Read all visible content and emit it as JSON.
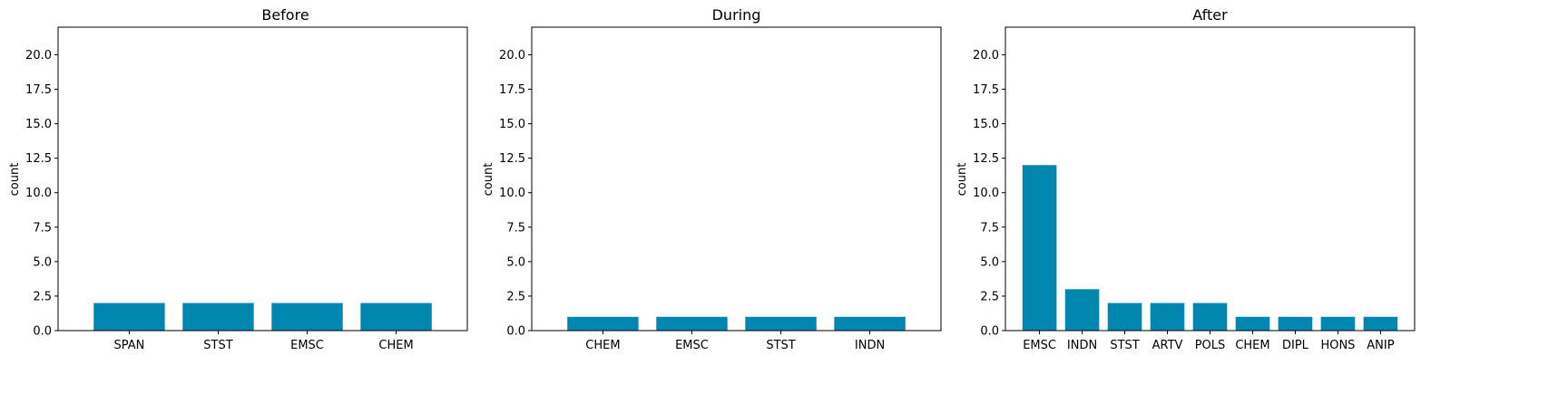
{
  "bar_color": "#0087b0",
  "chart_data": [
    {
      "type": "bar",
      "title": "Before",
      "xlabel": "",
      "ylabel": "count",
      "ylim": [
        0,
        22
      ],
      "yticks": [
        "0.0",
        "2.5",
        "5.0",
        "7.5",
        "10.0",
        "12.5",
        "15.0",
        "17.5",
        "20.0"
      ],
      "categories": [
        "SPAN",
        "STST",
        "EMSC",
        "CHEM"
      ],
      "values": [
        2,
        2,
        2,
        2
      ]
    },
    {
      "type": "bar",
      "title": "During",
      "xlabel": "",
      "ylabel": "count",
      "ylim": [
        0,
        22
      ],
      "yticks": [
        "0.0",
        "2.5",
        "5.0",
        "7.5",
        "10.0",
        "12.5",
        "15.0",
        "17.5",
        "20.0"
      ],
      "categories": [
        "CHEM",
        "EMSC",
        "STST",
        "INDN"
      ],
      "values": [
        1,
        1,
        1,
        1
      ]
    },
    {
      "type": "bar",
      "title": "After",
      "xlabel": "",
      "ylabel": "count",
      "ylim": [
        0,
        22
      ],
      "yticks": [
        "0.0",
        "2.5",
        "5.0",
        "7.5",
        "10.0",
        "12.5",
        "15.0",
        "17.5",
        "20.0"
      ],
      "categories": [
        "EMSC",
        "INDN",
        "STST",
        "ARTV",
        "POLS",
        "CHEM",
        "DIPL",
        "HONS",
        "ANIP"
      ],
      "values": [
        12,
        3,
        2,
        2,
        2,
        1,
        1,
        1,
        1
      ]
    }
  ]
}
